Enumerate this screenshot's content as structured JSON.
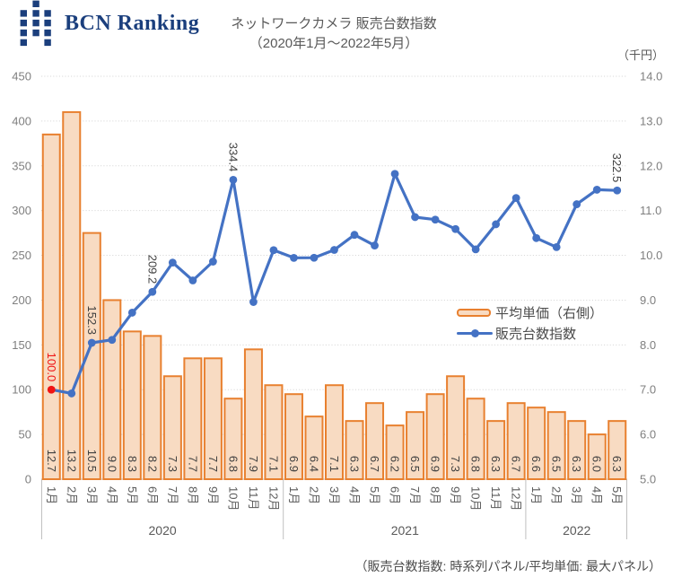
{
  "logo": {
    "text": "BCN Ranking",
    "icon_name": "bcn-squares-logo"
  },
  "title": {
    "line1": "ネットワークカメラ 販売台数指数",
    "line2": "（2020年1月〜2022年5月）"
  },
  "legend": {
    "bar_label": "平均単価（右側）",
    "line_label": "販売台数指数"
  },
  "note": "（販売台数指数: 時系列パネル/平均単価: 最大パネル）",
  "colors": {
    "brand_navy": "#1B3F7D",
    "bar_border": "#E8802F",
    "bar_fill": "#F8DBC2",
    "line_blue": "#4472C4",
    "marker_red": "#F01414",
    "grid": "#D9D9D9",
    "axis_line": "#C0C0C0",
    "tick_text": "#7F7F7F",
    "month_text": "#595959",
    "year_text": "#595959",
    "value_text": "#3F3F3F",
    "title_text": "#595959",
    "note_text": "#4D4D4D",
    "legend_text": "#4D4D4D"
  },
  "chart_data": {
    "type": "combo: bar + line",
    "title": "ネットワークカメラ 販売台数指数（2020年1月〜2022年5月）",
    "categories": [
      "1月",
      "2月",
      "3月",
      "4月",
      "5月",
      "6月",
      "7月",
      "8月",
      "9月",
      "10月",
      "11月",
      "12月",
      "1月",
      "2月",
      "3月",
      "4月",
      "5月",
      "6月",
      "7月",
      "8月",
      "9月",
      "10月",
      "11月",
      "12月",
      "1月",
      "2月",
      "3月",
      "4月",
      "5月"
    ],
    "year_groups": [
      {
        "label": "2020",
        "months": 12
      },
      {
        "label": "2021",
        "months": 12
      },
      {
        "label": "2022",
        "months": 5
      }
    ],
    "series": [
      {
        "name": "平均単価（右側）",
        "type": "bar",
        "axis": "right",
        "values": [
          12.7,
          13.2,
          10.5,
          9.0,
          8.3,
          8.2,
          7.3,
          7.7,
          7.7,
          6.8,
          7.9,
          7.1,
          6.9,
          6.4,
          7.1,
          6.3,
          6.7,
          6.2,
          6.5,
          6.9,
          7.3,
          6.8,
          6.3,
          6.7,
          6.6,
          6.5,
          6.3,
          6.0,
          6.3
        ]
      },
      {
        "name": "販売台数指数",
        "type": "line",
        "axis": "left",
        "values": [
          100.0,
          95.8,
          152.3,
          155.6,
          186.0,
          209.2,
          241.9,
          222.0,
          243.0,
          334.4,
          197.9,
          255.8,
          247.2,
          247.3,
          256.1,
          272.9,
          261.0,
          341.0,
          292.7,
          289.9,
          279.4,
          256.7,
          284.7,
          314.1,
          269.3,
          259.2,
          307.1,
          323.3,
          322.5
        ]
      }
    ],
    "annotations": [
      {
        "index": 0,
        "label": "100.0",
        "red": true
      },
      {
        "index": 2,
        "label": "152.3",
        "red": false
      },
      {
        "index": 5,
        "label": "209.2",
        "red": false
      },
      {
        "index": 9,
        "label": "334.4",
        "red": false
      },
      {
        "index": 28,
        "label": "322.5",
        "red": false
      }
    ],
    "left_axis": {
      "min": 0,
      "max": 450,
      "step": 50
    },
    "right_axis": {
      "min": 5.0,
      "max": 14.0,
      "step": 1.0,
      "unit": "（千円）",
      "decimals": 1
    },
    "grid": "dotted horizontal",
    "legend_position": "middle-right"
  }
}
